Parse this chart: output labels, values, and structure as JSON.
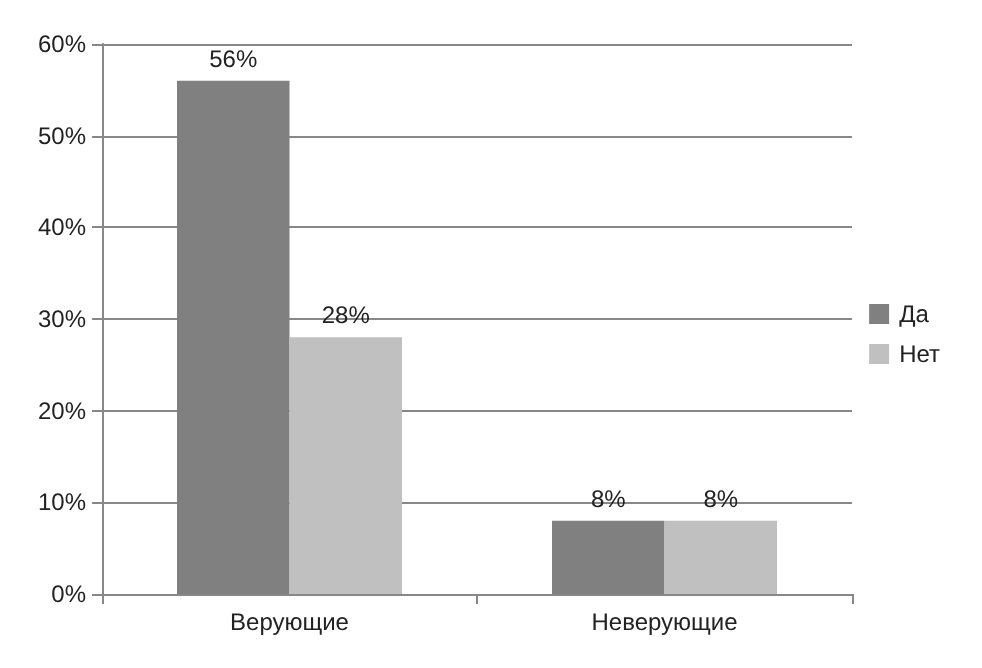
{
  "chart_data": {
    "type": "bar",
    "categories": [
      "Верующие",
      "Неверующие"
    ],
    "series": [
      {
        "name": "Да",
        "color": "#808080",
        "values": [
          56,
          8
        ],
        "value_labels": [
          "56%",
          "8%"
        ]
      },
      {
        "name": "Нет",
        "color": "#c0c0c0",
        "values": [
          28,
          8
        ],
        "value_labels": [
          "28%",
          "8%"
        ]
      }
    ],
    "ylim": [
      0,
      60
    ],
    "yticks": [
      {
        "value": 0,
        "label": "0%"
      },
      {
        "value": 10,
        "label": "10%"
      },
      {
        "value": 20,
        "label": "20%"
      },
      {
        "value": 30,
        "label": "30%"
      },
      {
        "value": 40,
        "label": "40%"
      },
      {
        "value": 50,
        "label": "50%"
      },
      {
        "value": 60,
        "label": "60%"
      }
    ],
    "grid": "y",
    "legend": "right"
  }
}
